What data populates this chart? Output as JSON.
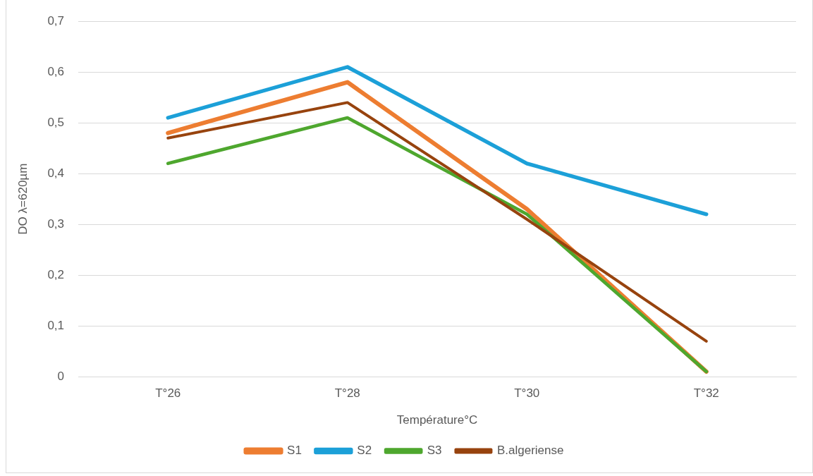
{
  "chart_data": {
    "type": "line",
    "xlabel": "Température°C",
    "ylabel": "DO λ=620µm",
    "categories": [
      "T°26",
      "T°28",
      "T°30",
      "T°32"
    ],
    "series": [
      {
        "name": "S1",
        "color": "#ed7d31",
        "values": [
          0.48,
          0.58,
          0.33,
          0.01
        ]
      },
      {
        "name": "S2",
        "color": "#1ca0d8",
        "values": [
          0.51,
          0.61,
          0.42,
          0.32
        ]
      },
      {
        "name": "S3",
        "color": "#4ea72e",
        "values": [
          0.42,
          0.51,
          0.32,
          0.01
        ]
      },
      {
        "name": "B.algeriense",
        "color": "#97430e",
        "values": [
          0.47,
          0.54,
          0.31,
          0.07
        ]
      }
    ],
    "ylim": [
      0,
      0.7
    ],
    "yticks": [
      {
        "value": 0,
        "label": "0"
      },
      {
        "value": 0.1,
        "label": "0,1"
      },
      {
        "value": 0.2,
        "label": "0,2"
      },
      {
        "value": 0.3,
        "label": "0,3"
      },
      {
        "value": 0.4,
        "label": "0,4"
      },
      {
        "value": 0.5,
        "label": "0,5"
      },
      {
        "value": 0.6,
        "label": "0,6"
      },
      {
        "value": 0.7,
        "label": "0,7"
      }
    ],
    "grid": "y",
    "legend": "bottom",
    "marker": "none",
    "line_style": "solid"
  }
}
